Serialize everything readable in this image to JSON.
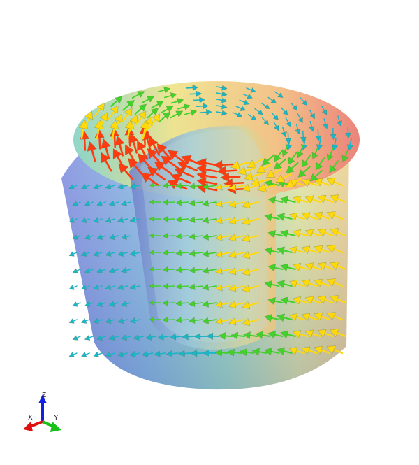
{
  "scene": {
    "background": "#ffffff",
    "object": "cylindrical-shell-vector-field",
    "colors": {
      "surface_low": "#6f78d8",
      "surface_mid": "#7ecfd6",
      "surface_high": "#f4b58a",
      "arrow_low": "#1ab5c8",
      "arrow_mid": "#43d12c",
      "arrow_high": "#ffd90c",
      "arrow_peak": "#ff3b12"
    }
  },
  "triad": {
    "x_label": "X",
    "y_label": "Y",
    "z_label": "Z",
    "x_color": "#e01010",
    "y_color": "#18c018",
    "z_color": "#1420e0"
  }
}
